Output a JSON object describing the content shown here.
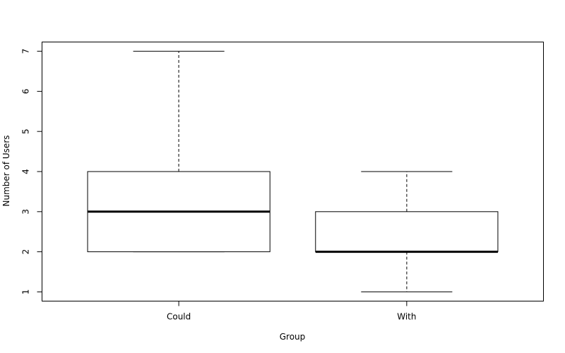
{
  "chart_data": {
    "type": "boxplot",
    "title": "",
    "xlabel": "Group",
    "ylabel": "Number of Users",
    "categories": [
      "Could",
      "With"
    ],
    "boxes": [
      {
        "category": "Could",
        "whisker_low": 2,
        "q1": 2,
        "median": 3,
        "q3": 4,
        "whisker_high": 7
      },
      {
        "category": "With",
        "whisker_low": 1,
        "q1": 2,
        "median": 2,
        "q3": 3,
        "whisker_high": 4
      }
    ],
    "ylim": [
      0.77,
      7.23
    ],
    "yticks": [
      "1",
      "2",
      "3",
      "4",
      "5",
      "6",
      "7"
    ],
    "grid": false,
    "colors": {
      "box_fill": "#ffffff",
      "stroke": "#000000",
      "whisker": "#555555"
    }
  }
}
